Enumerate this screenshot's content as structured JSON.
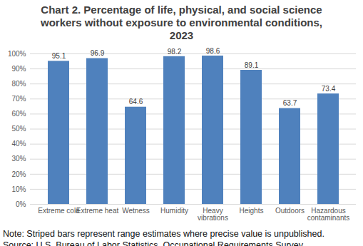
{
  "chart_data": {
    "type": "bar",
    "title": "Chart 2. Percentage of life, physical, and social science workers without exposure to environmental conditions, 2023",
    "categories": [
      "Extreme cold",
      "Extreme heat",
      "Wetness",
      "Humidity",
      "Heavy vibrations",
      "Heights",
      "Outdoors",
      "Hazardous contaminants"
    ],
    "values": [
      95.1,
      96.9,
      64.6,
      98.2,
      98.6,
      89.1,
      63.7,
      73.4
    ],
    "color": "#4f81bd",
    "ylim": [
      0,
      100
    ],
    "yticks": [
      {
        "value": 0,
        "label": "0%"
      },
      {
        "value": 10,
        "label": "10%"
      },
      {
        "value": 20,
        "label": "20%"
      },
      {
        "value": 30,
        "label": "30%"
      },
      {
        "value": 40,
        "label": "40%"
      },
      {
        "value": 50,
        "label": "50%"
      },
      {
        "value": 60,
        "label": "60%"
      },
      {
        "value": 70,
        "label": "70%"
      },
      {
        "value": 80,
        "label": "80%"
      },
      {
        "value": 90,
        "label": "90%"
      },
      {
        "value": 100,
        "label": "100%"
      }
    ],
    "grid": true,
    "data_labels": true,
    "caption": [
      "Note: Striped bars represent range estimates where precise value is unpublished.",
      "Source: U.S. Bureau of Labor Statistics, Occupational Requirements Survey"
    ]
  }
}
